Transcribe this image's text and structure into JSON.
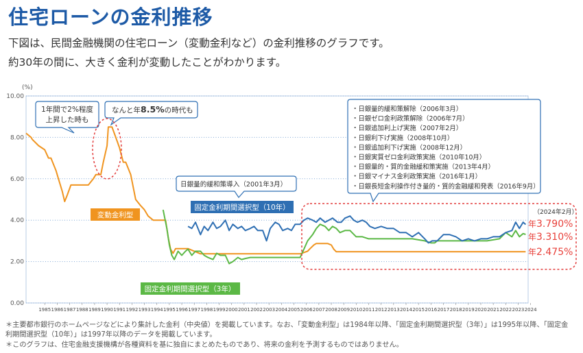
{
  "title": "住宅ローンの金利推移",
  "intro": [
    "下図は、民間金融機関の住宅ローン（変動金利など）の金利推移のグラフです。",
    "約30年の間に、大きく金利が変動したことがわかります。"
  ],
  "footnotes": [
    "＊主要都市銀行のホームページなどにより集計した金利（中央値）を掲載しています。なお、「変動金利型」は1984年以降、「固定金利期間選択型（3年）」は1995年以降、「固定金利期間選択型（10年）」は1997年以降のデータを掲載しています。",
    "＊このグラフは、住宅金融支援機構が各種資料を基に独自にまとめたものであり、将来の金利を予測するものではありません。"
  ],
  "colors": {
    "title": "#1d5aa6",
    "variable": "#f0941f",
    "fixed3": "#5bb845",
    "fixed10": "#2e6fb3",
    "grid": "#7fa6d4",
    "callout_border": "#2e6fb3",
    "highlight": "#e23a3a",
    "rate_text": "#e8403a"
  },
  "chart_data": {
    "type": "line",
    "y_unit": "(%)",
    "ylim": [
      0,
      10
    ],
    "y_ticks": [
      "0.00",
      "2.00",
      "4.00",
      "6.00",
      "8.00",
      "10.00"
    ],
    "x_ticks": [
      "1985",
      "1986",
      "1987",
      "1988",
      "1989",
      "1990",
      "1991",
      "1992",
      "1993",
      "1994",
      "1995",
      "1996",
      "1997",
      "1998",
      "1999",
      "2000",
      "2001",
      "2002",
      "2003",
      "2004",
      "2005",
      "2006",
      "2007",
      "2008",
      "2009",
      "2010",
      "2011",
      "2012",
      "2013",
      "2014",
      "2015",
      "2016",
      "2017",
      "2018",
      "2019",
      "2020",
      "2021",
      "2022",
      "2023",
      "2024"
    ],
    "grid": "horizontal dotted",
    "series": [
      {
        "name": "変動金利型",
        "color": "#f0941f",
        "x": [
          1984.0,
          1984.4,
          1984.5,
          1985.0,
          1985.5,
          1985.8,
          1986.0,
          1986.4,
          1986.6,
          1986.9,
          1987.1,
          1987.3,
          1987.6,
          1988.0,
          1988.4,
          1989.0,
          1989.4,
          1989.6,
          1990.0,
          1990.2,
          1990.5,
          1990.6,
          1990.9,
          1991.2,
          1991.5,
          1991.8,
          1992.0,
          1992.4,
          1992.8,
          1993.2,
          1993.5,
          1993.8,
          1994.2,
          1994.8,
          1995.2,
          1995.4,
          1995.6,
          1995.8,
          1996.0,
          1997.0,
          1998.0,
          1999.0,
          2000.0,
          2001.0,
          2002.0,
          2003.0,
          2004.0,
          2005.0,
          2006.0,
          2006.6,
          2006.8,
          2007.1,
          2007.3,
          2008.2,
          2008.5,
          2008.7,
          2008.9,
          2009.0,
          2010.0,
          2012.0,
          2014.0,
          2016.0,
          2018.0,
          2020.0,
          2022.0,
          2024.1
        ],
        "y": [
          8.2,
          8.0,
          7.9,
          7.6,
          7.4,
          7.0,
          7.0,
          6.4,
          6.0,
          5.4,
          4.9,
          5.2,
          5.7,
          5.7,
          5.7,
          5.7,
          6.0,
          6.2,
          6.2,
          6.8,
          7.6,
          8.5,
          8.5,
          8.0,
          7.5,
          6.8,
          6.8,
          6.2,
          5.0,
          4.7,
          4.5,
          4.2,
          4.0,
          4.0,
          4.0,
          3.2,
          2.6,
          2.4,
          2.625,
          2.625,
          2.375,
          2.375,
          2.375,
          2.375,
          2.375,
          2.375,
          2.375,
          2.375,
          2.375,
          2.5,
          2.625,
          2.8,
          2.875,
          2.875,
          2.8,
          2.6,
          2.475,
          2.475,
          2.475,
          2.475,
          2.475,
          2.475,
          2.475,
          2.475,
          2.475,
          2.475
        ]
      },
      {
        "name": "固定金利期間選択型（3年）",
        "color": "#5bb845",
        "x": [
          1995.0,
          1995.3,
          1995.5,
          1995.7,
          1995.9,
          1996.2,
          1996.5,
          1996.8,
          1997.0,
          1997.3,
          1997.6,
          1998.0,
          1998.3,
          1998.6,
          1999.0,
          1999.3,
          1999.6,
          2000.0,
          2000.3,
          2000.6,
          2001.0,
          2001.3,
          2001.6,
          2002.0,
          2003.0,
          2004.0,
          2005.0,
          2006.0,
          2006.3,
          2006.6,
          2007.0,
          2007.3,
          2007.6,
          2008.0,
          2008.3,
          2008.6,
          2008.9,
          2009.2,
          2009.6,
          2010.0,
          2010.5,
          2011.0,
          2011.5,
          2012.0,
          2013.0,
          2014.0,
          2015.0,
          2016.0,
          2016.5,
          2016.8,
          2017.0,
          2018.0,
          2019.0,
          2020.0,
          2021.0,
          2022.0,
          2022.5,
          2023.0,
          2023.3,
          2023.6,
          2023.9,
          2024.1
        ],
        "y": [
          4.5,
          3.6,
          2.8,
          2.3,
          2.1,
          2.5,
          2.3,
          2.5,
          2.6,
          2.3,
          2.5,
          2.5,
          2.3,
          2.2,
          2.1,
          2.4,
          2.3,
          2.3,
          1.9,
          2.0,
          2.2,
          2.1,
          2.15,
          2.2,
          2.2,
          2.2,
          2.2,
          2.2,
          2.6,
          3.0,
          3.3,
          3.6,
          3.8,
          3.7,
          3.5,
          3.7,
          3.6,
          3.4,
          3.5,
          3.5,
          3.2,
          3.2,
          3.1,
          3.1,
          3.1,
          3.1,
          3.1,
          3.0,
          2.9,
          2.9,
          3.0,
          3.0,
          3.0,
          3.0,
          3.0,
          3.1,
          3.4,
          3.2,
          3.5,
          3.2,
          3.35,
          3.31
        ]
      },
      {
        "name": "固定金利期間選択型（10年）",
        "color": "#2e6fb3",
        "x": [
          1997.0,
          1997.3,
          1997.6,
          1998.0,
          1998.3,
          1998.6,
          1999.0,
          1999.3,
          1999.6,
          2000.0,
          2000.3,
          2000.6,
          2001.0,
          2001.3,
          2001.6,
          2002.0,
          2002.3,
          2002.6,
          2003.0,
          2003.3,
          2003.6,
          2004.0,
          2004.3,
          2004.6,
          2005.0,
          2005.3,
          2005.6,
          2006.0,
          2006.3,
          2006.6,
          2007.0,
          2007.3,
          2007.6,
          2008.0,
          2008.3,
          2008.6,
          2009.0,
          2009.3,
          2009.6,
          2010.0,
          2010.3,
          2010.6,
          2011.0,
          2011.3,
          2011.6,
          2012.0,
          2012.5,
          2013.0,
          2013.5,
          2014.0,
          2014.5,
          2015.0,
          2015.5,
          2016.0,
          2016.3,
          2016.6,
          2017.0,
          2017.5,
          2018.0,
          2018.5,
          2019.0,
          2019.5,
          2020.0,
          2020.5,
          2021.0,
          2021.5,
          2022.0,
          2022.5,
          2023.0,
          2023.3,
          2023.6,
          2023.9,
          2024.1
        ],
        "y": [
          3.7,
          3.6,
          3.9,
          3.3,
          3.7,
          3.5,
          3.9,
          3.6,
          3.7,
          4.0,
          3.5,
          3.8,
          3.6,
          3.7,
          3.5,
          3.6,
          3.7,
          3.5,
          3.5,
          3.0,
          3.6,
          3.9,
          3.8,
          3.5,
          3.6,
          3.5,
          3.8,
          3.8,
          4.0,
          4.1,
          4.0,
          3.9,
          4.1,
          3.9,
          4.0,
          4.1,
          3.9,
          3.9,
          4.1,
          4.2,
          4.0,
          3.9,
          4.0,
          3.9,
          3.7,
          3.6,
          3.7,
          3.6,
          3.6,
          3.4,
          3.4,
          3.2,
          3.4,
          3.1,
          2.9,
          3.0,
          3.0,
          3.3,
          3.3,
          3.2,
          3.0,
          3.1,
          3.0,
          3.1,
          3.1,
          3.2,
          3.2,
          3.4,
          3.5,
          3.9,
          3.6,
          3.9,
          3.79
        ]
      }
    ],
    "series_labels": [
      {
        "text": "変動金利型",
        "series": 0
      },
      {
        "text": "固定金利期間選択型（3年）",
        "series": 1
      },
      {
        "text": "固定金利期間選択型（10年）",
        "series": 2
      }
    ],
    "annotations": {
      "callout1": [
        "1年間で2%程度",
        "上昇した時も"
      ],
      "callout2_prefix": "なんと年",
      "callout2_value": "8.5%",
      "callout2_suffix": "の時代も",
      "boj2001": "日銀量的緩和策導入（2001年3月）",
      "boj_list": [
        "・日銀量的緩和策解除（2006年3月）",
        "・日銀ゼロ金利政策解除（2006年7月）",
        "・日銀追加利上げ実施（2007年2月）",
        "・日銀利下げ実施（2008年10月）",
        "・日銀追加利下げ実施（2008年12月）",
        "・日銀実質ゼロ金利政策実施（2010年10月）",
        "・日銀量的・質的金融緩和策実施（2013年4月）",
        "・日銀マイナス金利政策実施（2016年1月）",
        "・日銀長短金利操作付き量的・質的金融緩和発表（2016年9月）"
      ],
      "date_label": "（2024年2月）",
      "latest_rates": [
        {
          "prefix": "年",
          "value": "3.790%"
        },
        {
          "prefix": "年",
          "value": "3.310%"
        },
        {
          "prefix": "年",
          "value": "2.475%"
        }
      ]
    }
  }
}
